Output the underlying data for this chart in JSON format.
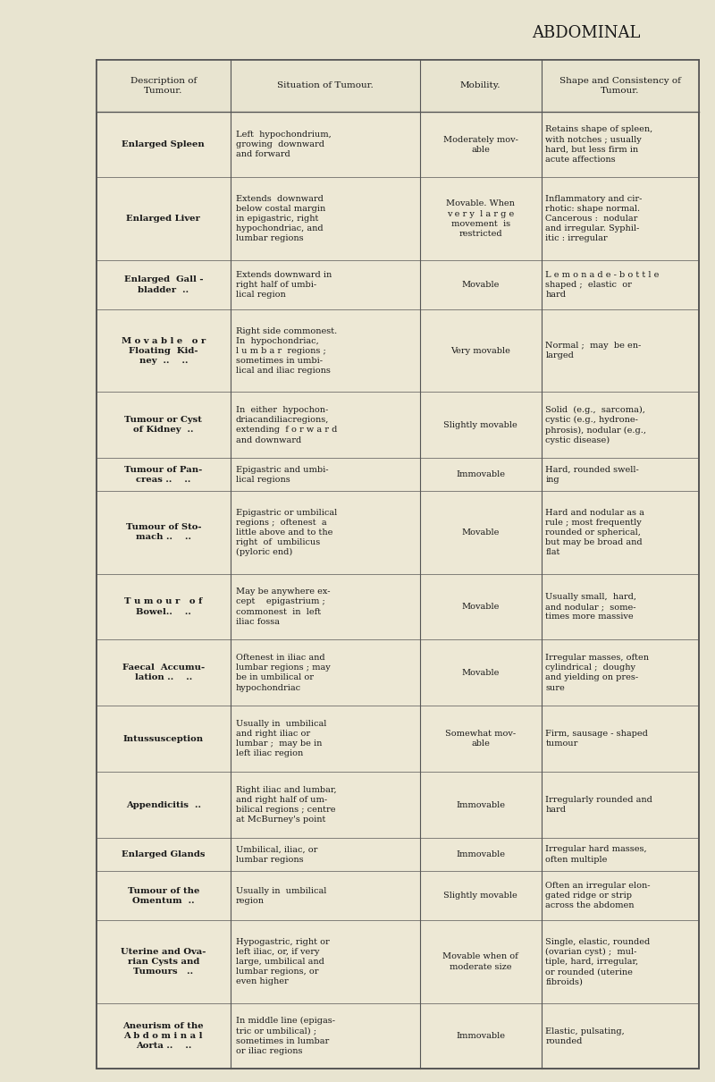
{
  "title": "ABDOMINAL",
  "background_color": "#e8e4d0",
  "table_bg": "#ede8d5",
  "header_bg": "#e8e4d0",
  "border_color": "#555555",
  "text_color": "#1a1a1a",
  "col_headers": [
    "Description of\nTumour.",
    "Situation of Tumour.",
    "Mobility.",
    "Shape and Consistency of\nTumour."
  ],
  "rows": [
    {
      "desc": "Enlarged Spleen",
      "situation": "Left  hypochondrium,\ngrowing  downward\nand forward",
      "mobility": "Moderately mov-\nable",
      "shape": "Retains shape of spleen,\nwith notches ; usually\nhard, but less firm in\nacute affections"
    },
    {
      "desc": "Enlarged Liver",
      "situation": "Extends  downward\nbelow costal margin\nin epigastric, right\nhypochondriac, and\nlumbar regions",
      "mobility": "Movable. When\nv e r y  l a r g e\nmovement  is\nrestricted",
      "shape": "Inflammatory and cir-\nrhotic: shape normal.\nCancerous :  nodular\nand irregular. Syphil-\nitic : irregular"
    },
    {
      "desc": "Enlarged  Gall -\nbladder  ..",
      "situation": "Extends downward in\nright half of umbi-\nlical region",
      "mobility": "Movable",
      "shape": "L e m o n a d e - b o t t l e\nshaped ;  elastic  or\nhard"
    },
    {
      "desc": "M o v a b l e   o r\nFloating  Kid-\nney  ..    ..",
      "situation": "Right side commonest.\nIn  hypochondriac,\nl u m b a r  regions ;\nsometimes in umbi-\nlical and iliac regions",
      "mobility": "Very movable",
      "shape": "Normal ;  may  be en-\nlarged"
    },
    {
      "desc": "Tumour or Cyst\nof Kidney  ..",
      "situation": "In  either  hypochon-\ndriacandiliacregions,\nextending  f o r w a r d\nand downward",
      "mobility": "Slightly movable",
      "shape": "Solid  (e.g.,  sarcoma),\ncystic (e.g., hydrone-\nphrosis), nodular (e.g.,\ncystic disease)"
    },
    {
      "desc": "Tumour of Pan-\ncreas ..    ..",
      "situation": "Epigastric and umbi-\nlical regions",
      "mobility": "Immovable",
      "shape": "Hard, rounded swell-\ning"
    },
    {
      "desc": "Tumour of Sto-\nmach ..    ..",
      "situation": "Epigastric or umbilical\nregions ;  oftenest  a\nlittle above and to the\nright  of  umbilicus\n(pyloric end)",
      "mobility": "Movable",
      "shape": "Hard and nodular as a\nrule ; most frequently\nrounded or spherical,\nbut may be broad and\nflat"
    },
    {
      "desc": "T u m o u r   o f\nBowel..    ..",
      "situation": "May be anywhere ex-\ncept    epigastrium ;\ncommonest  in  left\niliac fossa",
      "mobility": "Movable",
      "shape": "Usually small,  hard,\nand nodular ;  some-\ntimes more massive"
    },
    {
      "desc": "Faecal  Accumu-\nlation ..    ..",
      "situation": "Oftenest in iliac and\nlumbar regions ; may\nbe in umbilical or\nhypochondriac",
      "mobility": "Movable",
      "shape": "Irregular masses, often\ncylindrical ;  doughy\nand yielding on pres-\nsure"
    },
    {
      "desc": "Intussusception",
      "situation": "Usually in  umbilical\nand right iliac or\nlumbar ;  may be in\nleft iliac region",
      "mobility": "Somewhat mov-\nable",
      "shape": "Firm, sausage - shaped\ntumour"
    },
    {
      "desc": "Appendicitis  ..",
      "situation": "Right iliac and lumbar,\nand right half of um-\nbilical regions ; centre\nat McBurney's point",
      "mobility": "Immovable",
      "shape": "Irregularly rounded and\nhard"
    },
    {
      "desc": "Enlarged Glands",
      "situation": "Umbilical, iliac, or\nlumbar regions",
      "mobility": "Immovable",
      "shape": "Irregular hard masses,\noften multiple"
    },
    {
      "desc": "Tumour of the\nOmentum  ..",
      "situation": "Usually in  umbilical\nregion",
      "mobility": "Slightly movable",
      "shape": "Often an irregular elon-\ngated ridge or strip\nacross the abdomen"
    },
    {
      "desc": "Uterine and Ova-\nrian Cysts and\nTumours   ..",
      "situation": "Hypogastric, right or\nleft iliac, or, if very\nlarge, umbilical and\nlumbar regions, or\neven higher",
      "mobility": "Movable when of\nmoderate size",
      "shape": "Single, elastic, rounded\n(ovarian cyst) ;  mul-\ntiple, hard, irregular,\nor rounded (uterine\nfibroids)"
    },
    {
      "desc": "Aneurism of the\nA b d o m i n a l\nAorta ..    ..",
      "situation": "In middle line (epigas-\ntric or umbilical) ;\nsometimes in lumbar\nor iliac regions",
      "mobility": "Immovable",
      "shape": "Elastic, pulsating,\nrounded"
    }
  ]
}
